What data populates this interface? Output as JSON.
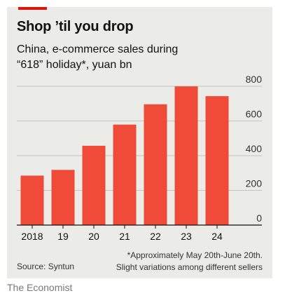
{
  "header": {
    "title": "Shop ’til you drop",
    "subtitle_line1": "China, e-commerce sales during",
    "subtitle_line2": "“618” holiday*, yuan bn"
  },
  "chart_data": {
    "type": "bar",
    "categories": [
      "2018",
      "19",
      "20",
      "21",
      "22",
      "23",
      "24"
    ],
    "values": [
      285,
      318,
      457,
      579,
      696,
      799,
      743
    ],
    "ylim": [
      0,
      800
    ],
    "yticks": [
      "0",
      "200",
      "400",
      "600",
      "800"
    ],
    "grid": true,
    "y_axis_side": "right",
    "bar_color": "#ef4b38"
  },
  "footer": {
    "footnote_line1": "*Approximately May 20th-June 20th.",
    "footnote_line2": "Slight variations among different sellers",
    "source": "Source: Syntun",
    "publisher": "The Economist"
  },
  "colors": {
    "accent": "#e3120b",
    "background": "#ebebe7"
  }
}
